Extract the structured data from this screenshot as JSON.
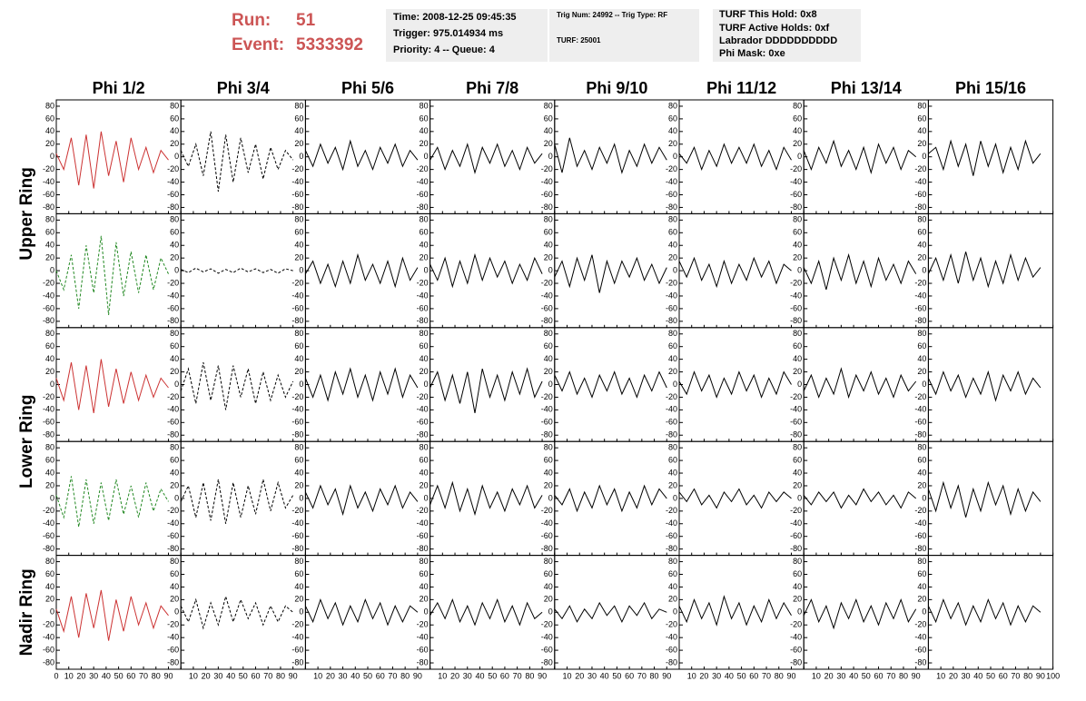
{
  "header": {
    "run_label": "Run:",
    "run": 51,
    "event_label": "Event:",
    "event": 5333392
  },
  "info_boxes": [
    [
      "Time: 2008-12-25 09:45:35",
      "Trigger: 975.014934 ms",
      "Priority: 4 -- Queue: 4"
    ],
    [
      "Trig Num: 24992 -- Trig Type: RF",
      "TURF: 25001"
    ],
    [
      "TURF This Hold: 0x8",
      "TURF Active Holds: 0xf",
      "Labrador DDDDDDDDDD",
      "Phi Mask: 0xe"
    ]
  ],
  "columns": [
    "Phi 1/2",
    "Phi 3/4",
    "Phi 5/6",
    "Phi 7/8",
    "Phi 9/10",
    "Phi 11/12",
    "Phi 13/14",
    "Phi 15/16"
  ],
  "row_labels": [
    "Upper Ring",
    "Lower Ring",
    "Nadir Ring"
  ],
  "axes": {
    "xlim": [
      0,
      100
    ],
    "xticks": [
      0,
      10,
      20,
      30,
      40,
      50,
      60,
      70,
      80,
      90,
      100
    ],
    "ylim": [
      -90,
      90
    ],
    "yticks": [
      -80,
      -60,
      -40,
      -20,
      0,
      20,
      40,
      60,
      80
    ]
  },
  "x": [
    0,
    6,
    12,
    18,
    24,
    30,
    36,
    42,
    48,
    54,
    60,
    66,
    72,
    78,
    84,
    90
  ],
  "traces": [
    [
      {
        "color": "#cc3333",
        "dashed": false,
        "values": [
          5,
          -20,
          30,
          -45,
          35,
          -50,
          40,
          -30,
          25,
          -40,
          30,
          -20,
          15,
          -25,
          10,
          -5
        ]
      },
      {
        "color": "#000000",
        "dashed": true,
        "values": [
          10,
          -15,
          20,
          -30,
          40,
          -55,
          35,
          -40,
          30,
          -25,
          20,
          -35,
          15,
          -20,
          10,
          -5
        ]
      },
      {
        "color": "#000000",
        "dashed": false,
        "values": [
          10,
          -15,
          20,
          -10,
          15,
          -20,
          25,
          -15,
          10,
          -20,
          15,
          -10,
          20,
          -15,
          10,
          -5
        ]
      },
      {
        "color": "#000000",
        "dashed": false,
        "values": [
          -5,
          15,
          -20,
          10,
          -15,
          20,
          -25,
          15,
          -10,
          20,
          -15,
          10,
          -20,
          15,
          -10,
          5
        ]
      },
      {
        "color": "#000000",
        "dashed": false,
        "values": [
          20,
          -25,
          30,
          -15,
          10,
          -20,
          15,
          -10,
          20,
          -25,
          10,
          -15,
          20,
          -10,
          15,
          -5
        ]
      },
      {
        "color": "#000000",
        "dashed": false,
        "values": [
          5,
          -10,
          15,
          -20,
          10,
          -15,
          20,
          -10,
          15,
          -10,
          20,
          -15,
          10,
          -20,
          15,
          -5
        ]
      },
      {
        "color": "#000000",
        "dashed": false,
        "values": [
          10,
          -20,
          15,
          -10,
          25,
          -15,
          10,
          -20,
          15,
          -25,
          20,
          -10,
          15,
          -20,
          10,
          0
        ]
      },
      {
        "color": "#000000",
        "dashed": false,
        "values": [
          5,
          15,
          -20,
          25,
          -15,
          20,
          -30,
          25,
          -15,
          20,
          -25,
          15,
          -20,
          25,
          -10,
          5
        ]
      }
    ],
    [
      {
        "color": "#228822",
        "dashed": true,
        "values": [
          0,
          -30,
          25,
          -60,
          40,
          -35,
          55,
          -70,
          45,
          -40,
          30,
          -35,
          25,
          -30,
          20,
          -5
        ]
      },
      {
        "color": "#000000",
        "dashed": true,
        "values": [
          2,
          -3,
          4,
          -2,
          3,
          -4,
          2,
          -3,
          4,
          -2,
          3,
          -3,
          2,
          -4,
          3,
          0
        ]
      },
      {
        "color": "#000000",
        "dashed": false,
        "values": [
          -5,
          15,
          -20,
          10,
          -25,
          15,
          -20,
          25,
          -15,
          10,
          -20,
          15,
          -25,
          20,
          -15,
          5
        ]
      },
      {
        "color": "#000000",
        "dashed": false,
        "values": [
          10,
          -15,
          20,
          -25,
          15,
          -20,
          25,
          -15,
          20,
          -10,
          15,
          -20,
          10,
          -15,
          20,
          -5
        ]
      },
      {
        "color": "#000000",
        "dashed": false,
        "values": [
          -10,
          15,
          -25,
          20,
          -15,
          25,
          -35,
          15,
          -20,
          15,
          -10,
          20,
          -15,
          10,
          -20,
          5
        ]
      },
      {
        "color": "#000000",
        "dashed": false,
        "values": [
          15,
          -10,
          20,
          -15,
          10,
          -25,
          15,
          -20,
          10,
          -15,
          20,
          -10,
          15,
          -20,
          10,
          0
        ]
      },
      {
        "color": "#000000",
        "dashed": false,
        "values": [
          5,
          -20,
          15,
          -30,
          20,
          -15,
          25,
          -20,
          15,
          -25,
          20,
          -15,
          10,
          -20,
          15,
          -5
        ]
      },
      {
        "color": "#000000",
        "dashed": false,
        "values": [
          -5,
          20,
          -15,
          25,
          -20,
          30,
          -15,
          20,
          -25,
          15,
          -20,
          25,
          -15,
          20,
          -10,
          5
        ]
      }
    ],
    [
      {
        "color": "#cc3333",
        "dashed": false,
        "values": [
          10,
          -25,
          35,
          -40,
          30,
          -45,
          40,
          -35,
          25,
          -30,
          20,
          -25,
          15,
          -20,
          10,
          -5
        ]
      },
      {
        "color": "#000000",
        "dashed": true,
        "values": [
          -10,
          25,
          -30,
          35,
          -25,
          30,
          -40,
          30,
          -20,
          25,
          -30,
          20,
          -25,
          15,
          -20,
          5
        ]
      },
      {
        "color": "#000000",
        "dashed": false,
        "values": [
          10,
          -20,
          15,
          -25,
          20,
          -15,
          25,
          -20,
          15,
          -25,
          20,
          -15,
          25,
          -20,
          15,
          -5
        ]
      },
      {
        "color": "#000000",
        "dashed": false,
        "values": [
          -5,
          20,
          -25,
          15,
          -30,
          20,
          -45,
          25,
          -20,
          15,
          -25,
          20,
          -15,
          25,
          -20,
          5
        ]
      },
      {
        "color": "#000000",
        "dashed": false,
        "values": [
          15,
          -10,
          20,
          -15,
          10,
          -20,
          15,
          -10,
          20,
          -15,
          10,
          -20,
          15,
          -10,
          20,
          -5
        ]
      },
      {
        "color": "#000000",
        "dashed": false,
        "values": [
          5,
          -15,
          20,
          -10,
          15,
          -20,
          10,
          -15,
          20,
          -10,
          15,
          -20,
          10,
          -15,
          20,
          0
        ]
      },
      {
        "color": "#000000",
        "dashed": false,
        "values": [
          -10,
          15,
          -20,
          10,
          -15,
          25,
          -20,
          15,
          -10,
          20,
          -15,
          10,
          -20,
          15,
          -10,
          5
        ]
      },
      {
        "color": "#000000",
        "dashed": false,
        "values": [
          10,
          -15,
          20,
          -10,
          15,
          -20,
          10,
          -15,
          20,
          -25,
          15,
          -10,
          20,
          -15,
          10,
          -5
        ]
      }
    ],
    [
      {
        "color": "#228822",
        "dashed": true,
        "values": [
          5,
          -30,
          35,
          -45,
          30,
          -40,
          25,
          -35,
          30,
          -25,
          20,
          -30,
          25,
          -20,
          15,
          -5
        ]
      },
      {
        "color": "#000000",
        "dashed": true,
        "values": [
          -5,
          20,
          -30,
          25,
          -35,
          30,
          -40,
          25,
          -30,
          20,
          -25,
          30,
          -20,
          25,
          -15,
          5
        ]
      },
      {
        "color": "#000000",
        "dashed": false,
        "values": [
          10,
          -15,
          20,
          -10,
          15,
          -25,
          20,
          -15,
          10,
          -20,
          15,
          -10,
          20,
          -15,
          10,
          -5
        ]
      },
      {
        "color": "#000000",
        "dashed": false,
        "values": [
          -10,
          20,
          -15,
          25,
          -20,
          15,
          -25,
          20,
          -15,
          10,
          -20,
          15,
          -10,
          20,
          -15,
          5
        ]
      },
      {
        "color": "#000000",
        "dashed": false,
        "values": [
          5,
          -10,
          15,
          -20,
          10,
          -15,
          20,
          -10,
          15,
          -20,
          10,
          -15,
          20,
          -10,
          15,
          0
        ]
      },
      {
        "color": "#000000",
        "dashed": false,
        "values": [
          10,
          -5,
          15,
          -10,
          5,
          -15,
          10,
          -5,
          15,
          -10,
          5,
          -15,
          10,
          -5,
          10,
          0
        ]
      },
      {
        "color": "#000000",
        "dashed": false,
        "values": [
          5,
          -10,
          10,
          -5,
          10,
          -15,
          5,
          -10,
          15,
          -5,
          10,
          -10,
          5,
          -15,
          10,
          0
        ]
      },
      {
        "color": "#000000",
        "dashed": false,
        "values": [
          15,
          -20,
          25,
          -15,
          20,
          -30,
          15,
          -20,
          25,
          -10,
          20,
          -25,
          15,
          -20,
          10,
          -5
        ]
      }
    ],
    [
      {
        "color": "#cc3333",
        "dashed": false,
        "values": [
          5,
          -30,
          25,
          -40,
          30,
          -25,
          35,
          -45,
          20,
          -30,
          25,
          -20,
          15,
          -25,
          10,
          -5
        ]
      },
      {
        "color": "#000000",
        "dashed": true,
        "values": [
          10,
          -15,
          20,
          -25,
          15,
          -20,
          25,
          -15,
          20,
          -10,
          15,
          -20,
          10,
          -15,
          10,
          0
        ]
      },
      {
        "color": "#000000",
        "dashed": false,
        "values": [
          10,
          -15,
          20,
          -10,
          15,
          -20,
          10,
          -15,
          20,
          -10,
          15,
          -20,
          10,
          -15,
          10,
          0
        ]
      },
      {
        "color": "#000000",
        "dashed": false,
        "values": [
          -5,
          15,
          -10,
          20,
          -15,
          10,
          -20,
          15,
          -10,
          20,
          -15,
          10,
          -20,
          15,
          -10,
          0
        ]
      },
      {
        "color": "#000000",
        "dashed": false,
        "values": [
          5,
          -10,
          10,
          -15,
          5,
          -10,
          15,
          -5,
          10,
          -15,
          10,
          -5,
          15,
          -10,
          5,
          0
        ]
      },
      {
        "color": "#000000",
        "dashed": false,
        "values": [
          10,
          -15,
          20,
          -10,
          15,
          -20,
          25,
          -10,
          15,
          -20,
          10,
          -15,
          20,
          -10,
          15,
          -5
        ]
      },
      {
        "color": "#000000",
        "dashed": false,
        "values": [
          -5,
          20,
          -15,
          10,
          -25,
          15,
          -10,
          20,
          -15,
          10,
          -20,
          15,
          -10,
          20,
          -15,
          5
        ]
      },
      {
        "color": "#000000",
        "dashed": false,
        "values": [
          10,
          -15,
          20,
          -10,
          15,
          -20,
          10,
          -15,
          20,
          -10,
          15,
          -20,
          10,
          -15,
          10,
          0
        ]
      }
    ]
  ]
}
